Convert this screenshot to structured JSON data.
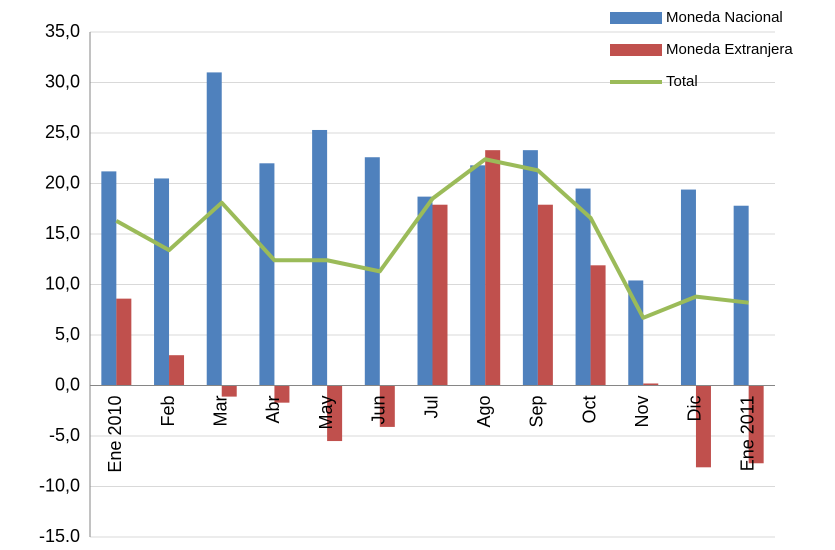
{
  "chart_data": {
    "type": "bar-line",
    "categories": [
      "Ene 2010",
      "Feb",
      "Mar",
      "Abr",
      "May",
      "Jun",
      "Jul",
      "Ago",
      "Sep",
      "Oct",
      "Nov",
      "Dic",
      "Ene 2011"
    ],
    "series": [
      {
        "name": "Moneda Nacional",
        "type": "bar",
        "color": "#4f81bd",
        "values": [
          21.2,
          20.5,
          31.0,
          22.0,
          25.3,
          22.6,
          18.7,
          21.8,
          23.3,
          19.5,
          10.4,
          19.4,
          17.8
        ]
      },
      {
        "name": "Moneda Extranjera",
        "type": "bar",
        "color": "#c0504d",
        "values": [
          8.6,
          3.0,
          -1.1,
          -1.7,
          -5.5,
          -4.1,
          17.9,
          23.3,
          17.9,
          11.9,
          0.2,
          -8.1,
          -7.7
        ]
      },
      {
        "name": "Total",
        "type": "line",
        "color": "#9bbb59",
        "values": [
          16.3,
          13.4,
          18.1,
          12.4,
          12.4,
          11.3,
          18.5,
          22.4,
          21.3,
          16.6,
          6.7,
          8.8,
          8.2
        ]
      }
    ],
    "ylim": [
      -15,
      35
    ],
    "yticks": [
      {
        "value": -15,
        "label": "-15.0"
      },
      {
        "value": -10,
        "label": "-10,0"
      },
      {
        "value": -5,
        "label": "-5,0"
      },
      {
        "value": 0,
        "label": "0,0"
      },
      {
        "value": 5,
        "label": "5,0"
      },
      {
        "value": 10,
        "label": "10,0"
      },
      {
        "value": 15,
        "label": "15,0"
      },
      {
        "value": 20,
        "label": "20,0"
      },
      {
        "value": 25,
        "label": "25,0"
      },
      {
        "value": 30,
        "label": "30,0"
      },
      {
        "value": 35,
        "label": "35,0"
      }
    ],
    "grid": true,
    "legend": "top-right"
  }
}
